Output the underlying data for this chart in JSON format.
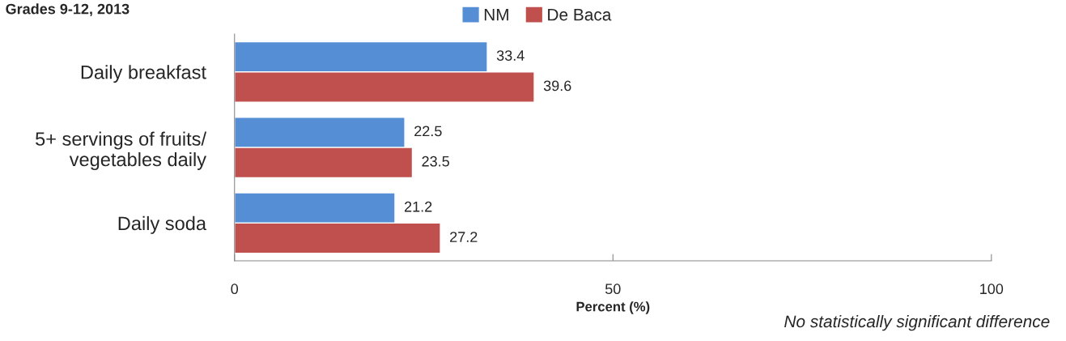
{
  "chart_data": {
    "type": "bar",
    "orientation": "horizontal",
    "title": "Grades 9-12, 2013",
    "xlabel": "Percent (%)",
    "categories": [
      "Daily breakfast",
      "5+ servings of fruits/\nvegetables daily",
      "Daily soda"
    ],
    "series": [
      {
        "name": "NM",
        "color": "#558ed5",
        "values": [
          33.4,
          22.5,
          21.2
        ]
      },
      {
        "name": "De Baca",
        "color": "#c0504d",
        "values": [
          39.6,
          23.5,
          27.2
        ]
      }
    ],
    "xlim": [
      0,
      100
    ],
    "xticks": [
      0,
      50,
      100
    ],
    "data_labels": true,
    "grid": false,
    "legend": "top",
    "annotations": [
      "No statistically significant difference"
    ]
  }
}
